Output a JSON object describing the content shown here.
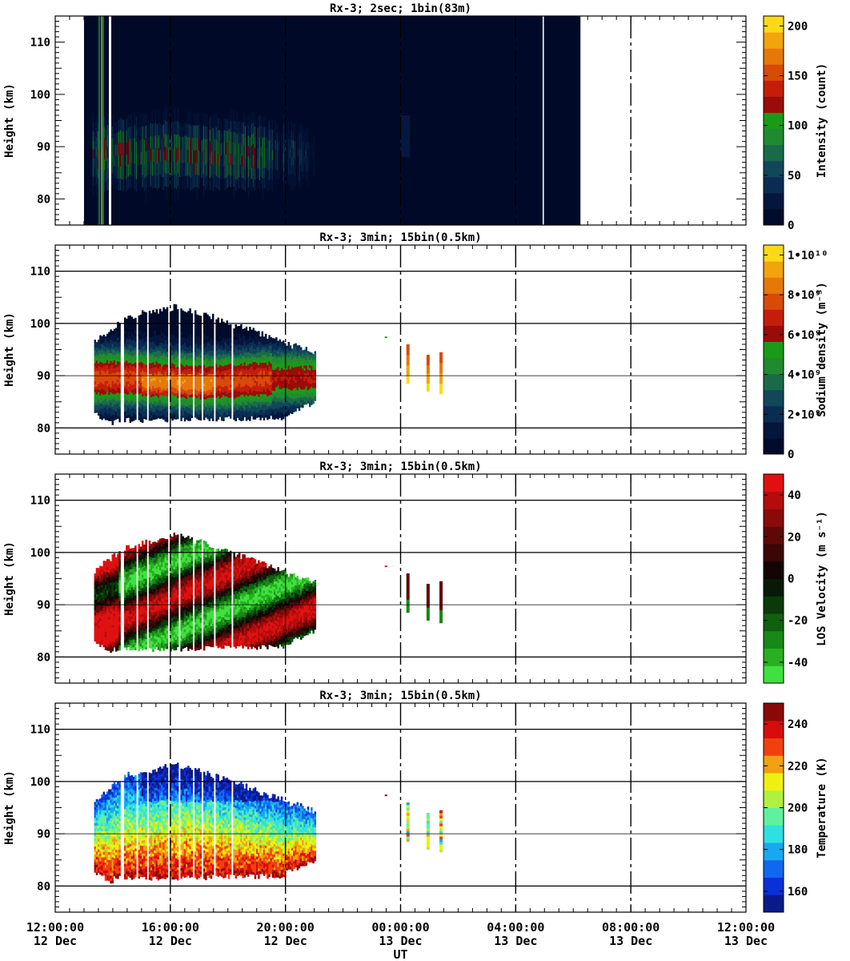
{
  "x_axis": {
    "label": "UT",
    "ticks": [
      {
        "time": "12:00:00",
        "date": "12 Dec"
      },
      {
        "time": "16:00:00",
        "date": "12 Dec"
      },
      {
        "time": "20:00:00",
        "date": "12 Dec"
      },
      {
        "time": "00:00:00",
        "date": "13 Dec"
      },
      {
        "time": "04:00:00",
        "date": "13 Dec"
      },
      {
        "time": "08:00:00",
        "date": "13 Dec"
      },
      {
        "time": "12:00:00",
        "date": "13 Dec"
      }
    ]
  },
  "chart_data": [
    {
      "type": "heatmap",
      "title": "Rx-3;  2sec; 1bin(83m)",
      "ylabel": "Height (km)",
      "yticks": [
        "80",
        "90",
        "100",
        "110"
      ],
      "ylim": [
        75,
        115
      ],
      "xlim_hours_ut": [
        12,
        36
      ],
      "colorbar": {
        "label": "Intensity (count)",
        "ticks": [
          "0",
          "50",
          "100",
          "150",
          "200"
        ],
        "range": [
          0,
          210
        ],
        "colors": [
          "#000a2a",
          "#04163c",
          "#0a2c52",
          "#10485a",
          "#1a6a4a",
          "#208a30",
          "#1a9a18",
          "#9a0c08",
          "#c41e0a",
          "#d84a08",
          "#e6780a",
          "#f2a40c",
          "#fada18"
        ]
      },
      "data_region_hours": [
        13.0,
        30.25
      ],
      "layer_peak_height_km": 88,
      "layer_peak_intensity": 120
    },
    {
      "type": "heatmap",
      "title": "Rx-3; 3min; 15bin(0.5km)",
      "ylabel": "Height (km)",
      "yticks": [
        "80",
        "90",
        "100",
        "110"
      ],
      "ylim": [
        75,
        115
      ],
      "xlim_hours_ut": [
        12,
        36
      ],
      "colorbar": {
        "label": "Sodium density (m⁻³)",
        "ticks": [
          "0",
          "2•10⁹",
          "4•10⁹",
          "6•10⁹",
          "8•10⁹",
          "1•10¹⁰"
        ],
        "range": [
          0,
          10500000000.0
        ],
        "colors": [
          "#000a2a",
          "#04163c",
          "#0a2c52",
          "#10485a",
          "#1a6a4a",
          "#208a30",
          "#1a9a18",
          "#9a0c08",
          "#c41e0a",
          "#d84a08",
          "#e6780a",
          "#f2a40c",
          "#fada18"
        ]
      },
      "layer_peak_height_km": 89,
      "peak_density": 7500000000.0
    },
    {
      "type": "heatmap",
      "title": "Rx-3; 3min; 15bin(0.5km)",
      "ylabel": "Height (km)",
      "yticks": [
        "80",
        "90",
        "100",
        "110"
      ],
      "ylim": [
        75,
        115
      ],
      "xlim_hours_ut": [
        12,
        36
      ],
      "colorbar": {
        "label": "LOS Velocity (m s⁻¹)",
        "ticks": [
          "-40",
          "-20",
          "0",
          "20",
          "40"
        ],
        "range": [
          -50,
          50
        ],
        "colors": [
          "#40e040",
          "#28b020",
          "#188818",
          "#106010",
          "#0a3a0a",
          "#061a06",
          "#140404",
          "#3a0606",
          "#600808",
          "#8a0a0a",
          "#b40c0c",
          "#e01010"
        ]
      }
    },
    {
      "type": "heatmap",
      "title": "Rx-3; 3min; 15bin(0.5km)",
      "ylabel": "Height (km)",
      "yticks": [
        "80",
        "90",
        "100",
        "110"
      ],
      "ylim": [
        75,
        115
      ],
      "xlim_hours_ut": [
        12,
        36
      ],
      "colorbar": {
        "label": "Temperature (K)",
        "ticks": [
          "160",
          "180",
          "200",
          "220",
          "240"
        ],
        "range": [
          150,
          250
        ],
        "colors": [
          "#0a1a8a",
          "#0a30d8",
          "#1068f0",
          "#18a8f0",
          "#30e0e0",
          "#60f0a0",
          "#b0f040",
          "#f0f010",
          "#f0a010",
          "#f04010",
          "#d80c0c",
          "#8a0808"
        ]
      }
    }
  ]
}
